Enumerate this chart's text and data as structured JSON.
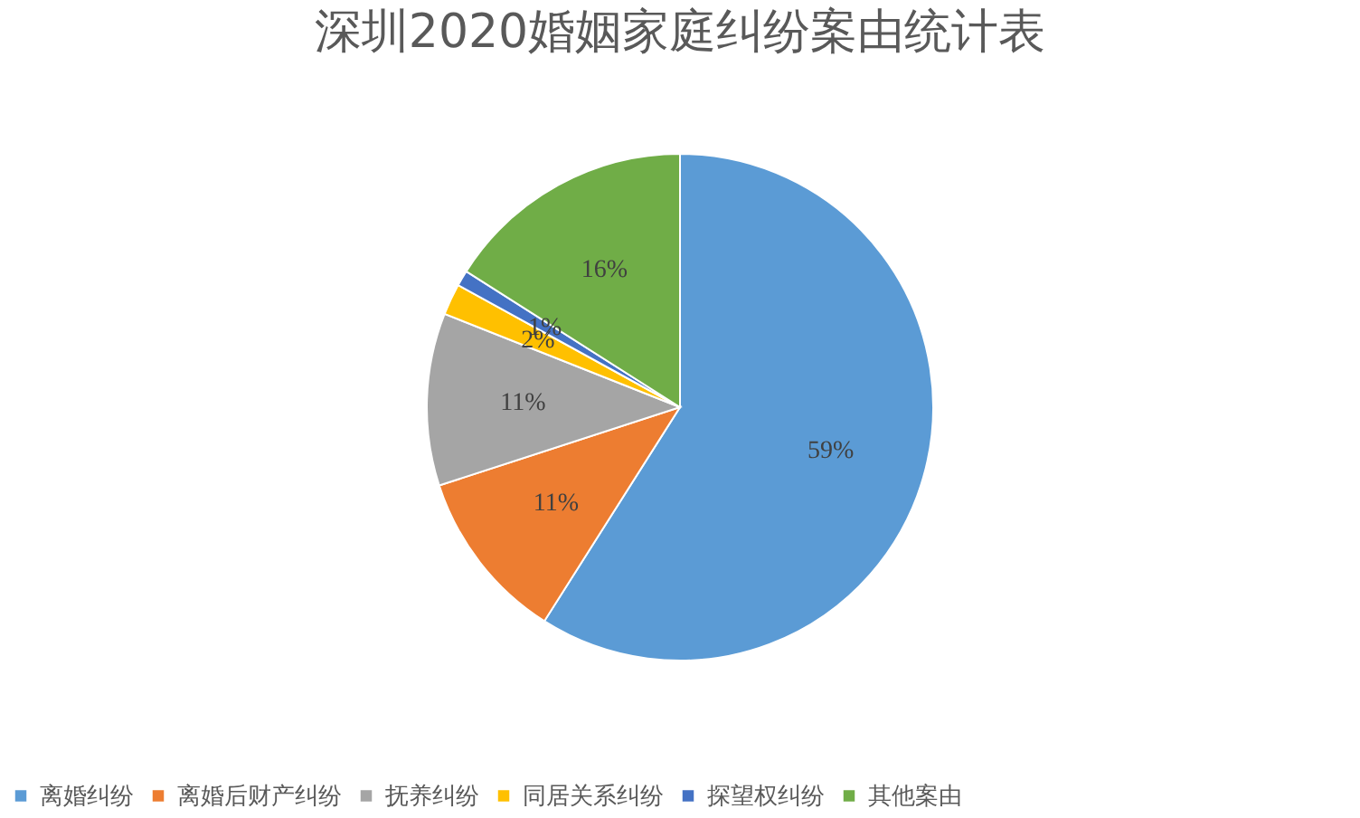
{
  "chart_data": {
    "type": "pie",
    "title": "深圳2020婚姻家庭纠纷案由统计表",
    "categories": [
      "离婚纠纷",
      "离婚后财产纠纷",
      "抚养纠纷",
      "同居关系纠纷",
      "探望权纠纷",
      "其他案由"
    ],
    "values": [
      59,
      11,
      11,
      2,
      1,
      16
    ],
    "value_labels": [
      "59%",
      "11%",
      "11%",
      "2%",
      "1%",
      "16%"
    ],
    "colors": [
      "#5b9bd5",
      "#ed7d31",
      "#a5a5a5",
      "#ffc000",
      "#4472c4",
      "#70ad47"
    ],
    "legend": "bottom"
  }
}
